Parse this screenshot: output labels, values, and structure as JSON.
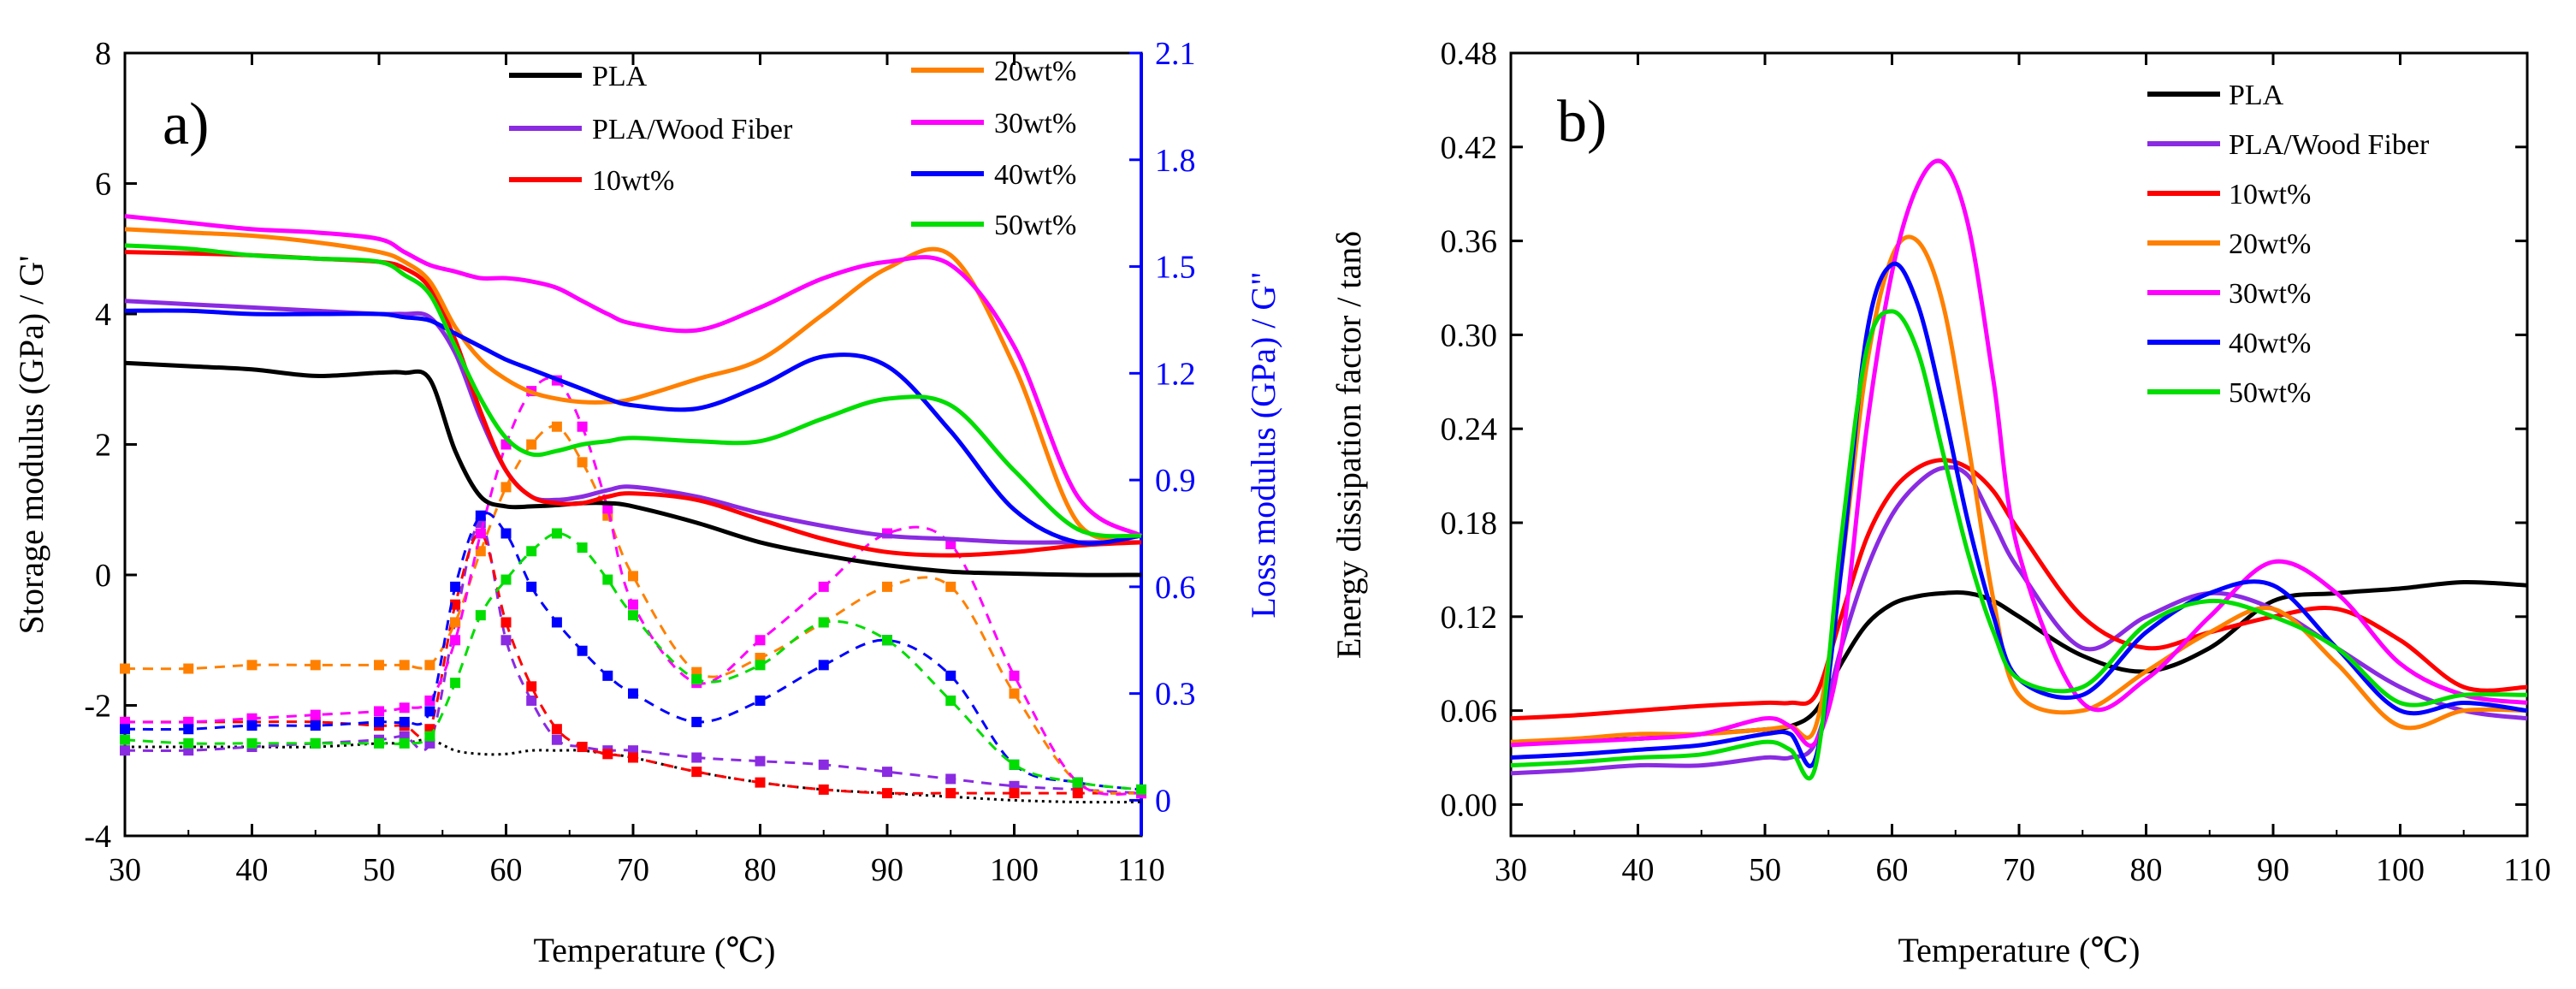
{
  "colors": {
    "PLA": "#000000",
    "PLA/Wood Fiber": "#8a2be2",
    "10wt%": "#ff0000",
    "20wt%": "#ff8000",
    "30wt%": "#ff00ff",
    "40wt%": "#0000ff",
    "50wt%": "#00dd00",
    "loss_axis": "#0000ff"
  },
  "chart_data": [
    {
      "type": "line",
      "title": "",
      "panel_label": "a)",
      "xlabel": "Temperature (℃)",
      "ylabel": "Storage modulus (GPa) / G'",
      "y2label": "Loss modulus (GPa) / G\"",
      "xlim": [
        30,
        110
      ],
      "ylim": [
        -4,
        8
      ],
      "y2lim": [
        -0.1,
        2.1
      ],
      "xticks": [
        "30",
        "40",
        "50",
        "60",
        "70",
        "80",
        "90",
        "100",
        "110"
      ],
      "yticks": [
        "-4",
        "-2",
        "0",
        "2",
        "4",
        "6",
        "8"
      ],
      "y2ticks": [
        "0",
        "0.3",
        "0.6",
        "0.9",
        "1.2",
        "1.5",
        "1.8",
        "2.1"
      ],
      "legend": [
        {
          "label": "PLA",
          "series": "PLA"
        },
        {
          "label": "PLA/Wood Fiber",
          "series": "PLA/Wood Fiber"
        },
        {
          "label": "10wt%",
          "series": "10wt%"
        },
        {
          "label": "20wt%",
          "series": "20wt%"
        },
        {
          "label": "30wt%",
          "series": "30wt%"
        },
        {
          "label": "40wt%",
          "series": "40wt%"
        },
        {
          "label": "50wt%",
          "series": "50wt%"
        }
      ],
      "x": [
        30,
        35,
        40,
        45,
        50,
        52,
        54,
        56,
        58,
        60,
        62,
        64,
        66,
        68,
        70,
        75,
        80,
        85,
        90,
        95,
        100,
        105,
        110
      ],
      "series_storage": [
        {
          "name": "PLA",
          "values": [
            3.25,
            3.2,
            3.15,
            3.05,
            3.1,
            3.1,
            3.0,
            1.9,
            1.2,
            1.05,
            1.05,
            1.07,
            1.1,
            1.1,
            1.05,
            0.8,
            0.5,
            0.3,
            0.15,
            0.05,
            0.02,
            0.0,
            0.0
          ]
        },
        {
          "name": "PLA/Wood Fiber",
          "values": [
            4.2,
            4.15,
            4.1,
            4.05,
            4.0,
            4.0,
            3.95,
            3.4,
            2.4,
            1.6,
            1.2,
            1.15,
            1.2,
            1.3,
            1.35,
            1.2,
            0.95,
            0.75,
            0.6,
            0.55,
            0.5,
            0.5,
            0.5
          ]
        },
        {
          "name": "10wt%",
          "values": [
            4.95,
            4.93,
            4.9,
            4.85,
            4.8,
            4.7,
            4.4,
            3.6,
            2.5,
            1.6,
            1.2,
            1.1,
            1.1,
            1.2,
            1.25,
            1.15,
            0.85,
            0.55,
            0.35,
            0.3,
            0.35,
            0.45,
            0.5
          ]
        },
        {
          "name": "20wt%",
          "values": [
            5.3,
            5.25,
            5.2,
            5.1,
            4.95,
            4.8,
            4.5,
            3.8,
            3.3,
            3.0,
            2.8,
            2.7,
            2.65,
            2.65,
            2.7,
            3.0,
            3.3,
            4.0,
            4.7,
            4.9,
            3.2,
            0.8,
            0.6
          ]
        },
        {
          "name": "30wt%",
          "values": [
            5.5,
            5.4,
            5.3,
            5.25,
            5.15,
            4.95,
            4.75,
            4.65,
            4.55,
            4.55,
            4.5,
            4.4,
            4.2,
            4.0,
            3.85,
            3.75,
            4.1,
            4.55,
            4.8,
            4.75,
            3.5,
            1.2,
            0.6
          ]
        },
        {
          "name": "40wt%",
          "values": [
            4.05,
            4.05,
            4.0,
            4.0,
            4.0,
            3.95,
            3.9,
            3.7,
            3.5,
            3.3,
            3.15,
            3.0,
            2.85,
            2.7,
            2.6,
            2.55,
            2.9,
            3.35,
            3.2,
            2.2,
            1.0,
            0.5,
            0.6
          ]
        },
        {
          "name": "50wt%",
          "values": [
            5.05,
            5.0,
            4.9,
            4.85,
            4.8,
            4.6,
            4.3,
            3.5,
            2.7,
            2.1,
            1.85,
            1.9,
            2.0,
            2.05,
            2.1,
            2.05,
            2.05,
            2.4,
            2.7,
            2.6,
            1.6,
            0.7,
            0.6
          ]
        }
      ],
      "series_loss": [
        {
          "name": "PLA",
          "values": [
            0.15,
            0.15,
            0.15,
            0.15,
            0.16,
            0.16,
            0.17,
            0.14,
            0.13,
            0.13,
            0.14,
            0.14,
            0.14,
            0.13,
            0.12,
            0.08,
            0.05,
            0.03,
            0.02,
            0.01,
            0.0,
            -0.005,
            -0.005
          ]
        },
        {
          "name": "PLA/Wood Fiber",
          "values": [
            0.14,
            0.14,
            0.15,
            0.16,
            0.17,
            0.18,
            0.16,
            0.5,
            0.78,
            0.45,
            0.28,
            0.17,
            0.15,
            0.14,
            0.14,
            0.12,
            0.11,
            0.1,
            0.08,
            0.06,
            0.04,
            0.03,
            0.02
          ]
        },
        {
          "name": "10wt%",
          "values": [
            0.22,
            0.22,
            0.22,
            0.22,
            0.21,
            0.21,
            0.2,
            0.55,
            0.75,
            0.5,
            0.32,
            0.2,
            0.15,
            0.13,
            0.12,
            0.08,
            0.05,
            0.03,
            0.02,
            0.02,
            0.02,
            0.02,
            0.02
          ]
        },
        {
          "name": "20wt%",
          "values": [
            0.37,
            0.37,
            0.38,
            0.38,
            0.38,
            0.38,
            0.38,
            0.5,
            0.7,
            0.88,
            1.0,
            1.05,
            0.95,
            0.8,
            0.63,
            0.36,
            0.4,
            0.5,
            0.6,
            0.6,
            0.3,
            0.05,
            0.02
          ]
        },
        {
          "name": "30wt%",
          "values": [
            0.22,
            0.22,
            0.23,
            0.24,
            0.25,
            0.26,
            0.28,
            0.45,
            0.75,
            1.0,
            1.15,
            1.18,
            1.05,
            0.82,
            0.55,
            0.33,
            0.45,
            0.6,
            0.75,
            0.72,
            0.35,
            0.05,
            0.02
          ]
        },
        {
          "name": "40wt%",
          "values": [
            0.2,
            0.2,
            0.21,
            0.21,
            0.22,
            0.22,
            0.25,
            0.6,
            0.8,
            0.75,
            0.6,
            0.5,
            0.42,
            0.35,
            0.3,
            0.22,
            0.28,
            0.38,
            0.45,
            0.35,
            0.1,
            0.05,
            0.03
          ]
        },
        {
          "name": "50wt%",
          "values": [
            0.17,
            0.16,
            0.16,
            0.16,
            0.16,
            0.16,
            0.18,
            0.33,
            0.52,
            0.62,
            0.7,
            0.75,
            0.71,
            0.62,
            0.52,
            0.34,
            0.38,
            0.5,
            0.45,
            0.28,
            0.1,
            0.05,
            0.03
          ]
        }
      ]
    },
    {
      "type": "line",
      "title": "",
      "panel_label": "b)",
      "xlabel": "Temperature (℃)",
      "ylabel": "Energy dissipation factor / tanδ",
      "xlim": [
        30,
        110
      ],
      "ylim": [
        -0.02,
        0.48
      ],
      "xticks": [
        "30",
        "40",
        "50",
        "60",
        "70",
        "80",
        "90",
        "100",
        "110"
      ],
      "yticks": [
        "0.00",
        "0.06",
        "0.12",
        "0.18",
        "0.24",
        "0.30",
        "0.36",
        "0.42",
        "0.48"
      ],
      "legend": [
        {
          "label": "PLA",
          "series": "PLA"
        },
        {
          "label": "PLA/Wood Fiber",
          "series": "PLA/Wood Fiber"
        },
        {
          "label": "10wt%",
          "series": "10wt%"
        },
        {
          "label": "20wt%",
          "series": "20wt%"
        },
        {
          "label": "30wt%",
          "series": "30wt%"
        },
        {
          "label": "40wt%",
          "series": "40wt%"
        },
        {
          "label": "50wt%",
          "series": "50wt%"
        }
      ],
      "x": [
        30,
        35,
        40,
        45,
        50,
        52,
        54,
        56,
        58,
        60,
        62,
        64,
        66,
        68,
        70,
        75,
        80,
        85,
        90,
        95,
        100,
        105,
        110
      ],
      "series": [
        {
          "name": "PLA",
          "values": [
            0.04,
            0.041,
            0.042,
            0.045,
            0.048,
            0.05,
            0.06,
            0.09,
            0.115,
            0.128,
            0.133,
            0.135,
            0.135,
            0.13,
            0.12,
            0.095,
            0.085,
            0.1,
            0.13,
            0.135,
            0.138,
            0.142,
            0.14
          ]
        },
        {
          "name": "PLA/Wood Fiber",
          "values": [
            0.02,
            0.022,
            0.025,
            0.025,
            0.03,
            0.03,
            0.04,
            0.1,
            0.15,
            0.185,
            0.205,
            0.215,
            0.21,
            0.18,
            0.15,
            0.1,
            0.12,
            0.135,
            0.125,
            0.1,
            0.075,
            0.06,
            0.055
          ]
        },
        {
          "name": "10wt%",
          "values": [
            0.055,
            0.057,
            0.06,
            0.063,
            0.065,
            0.065,
            0.07,
            0.12,
            0.17,
            0.2,
            0.215,
            0.22,
            0.215,
            0.2,
            0.175,
            0.12,
            0.1,
            0.11,
            0.12,
            0.125,
            0.105,
            0.075,
            0.075
          ]
        },
        {
          "name": "20wt%",
          "values": [
            0.04,
            0.042,
            0.045,
            0.045,
            0.048,
            0.05,
            0.05,
            0.15,
            0.28,
            0.35,
            0.36,
            0.32,
            0.23,
            0.13,
            0.07,
            0.06,
            0.085,
            0.11,
            0.125,
            0.09,
            0.05,
            0.06,
            0.06
          ]
        },
        {
          "name": "30wt%",
          "values": [
            0.038,
            0.04,
            0.042,
            0.045,
            0.055,
            0.05,
            0.04,
            0.1,
            0.24,
            0.34,
            0.395,
            0.41,
            0.37,
            0.27,
            0.16,
            0.065,
            0.08,
            0.12,
            0.155,
            0.135,
            0.09,
            0.07,
            0.065
          ]
        },
        {
          "name": "40wt%",
          "values": [
            0.03,
            0.032,
            0.035,
            0.038,
            0.045,
            0.045,
            0.03,
            0.15,
            0.3,
            0.345,
            0.32,
            0.255,
            0.18,
            0.12,
            0.08,
            0.07,
            0.11,
            0.135,
            0.14,
            0.1,
            0.06,
            0.065,
            0.06
          ]
        },
        {
          "name": "50wt%",
          "values": [
            0.025,
            0.027,
            0.03,
            0.032,
            0.04,
            0.035,
            0.025,
            0.17,
            0.29,
            0.315,
            0.29,
            0.225,
            0.16,
            0.11,
            0.08,
            0.075,
            0.115,
            0.13,
            0.12,
            0.1,
            0.065,
            0.07,
            0.07
          ]
        }
      ]
    }
  ]
}
